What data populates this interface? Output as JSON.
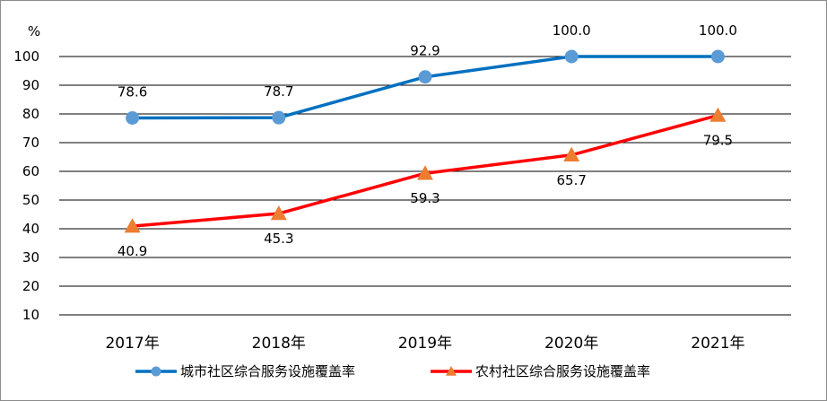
{
  "chart_data": {
    "type": "line",
    "categories": [
      "2017年",
      "2018年",
      "2019年",
      "2020年",
      "2021年"
    ],
    "yunit": "%",
    "yticks": [
      10,
      20,
      30,
      40,
      50,
      60,
      70,
      80,
      90,
      100
    ],
    "ylim": [
      10,
      100
    ],
    "grid": true,
    "legend_position": "bottom",
    "series": [
      {
        "name": "城市社区综合服务设施覆盖率",
        "values": [
          78.6,
          78.7,
          92.9,
          100.0,
          100.0
        ],
        "labels": [
          "78.6",
          "78.7",
          "92.9",
          "100.0",
          "100.0"
        ],
        "color": "#0070C0",
        "marker": "circle",
        "marker_color": "#5B9BD5"
      },
      {
        "name": "农村社区综合服务设施覆盖率",
        "values": [
          40.9,
          45.3,
          59.3,
          65.7,
          79.5
        ],
        "labels": [
          "40.9",
          "45.3",
          "59.3",
          "65.7",
          "79.5"
        ],
        "color": "#FF0000",
        "marker": "triangle",
        "marker_color": "#ED7D31"
      }
    ]
  }
}
